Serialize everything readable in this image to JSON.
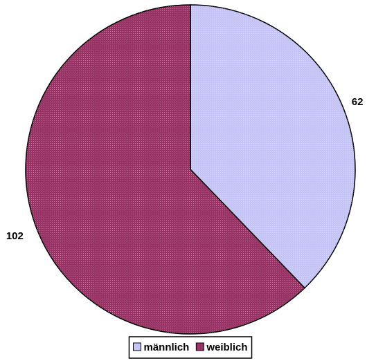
{
  "chart_data": {
    "type": "pie",
    "categories": [
      "männlich",
      "weiblich"
    ],
    "values": [
      62,
      102
    ],
    "colors": [
      "#c4c4f6",
      "#993366"
    ],
    "legend": "bottom"
  }
}
